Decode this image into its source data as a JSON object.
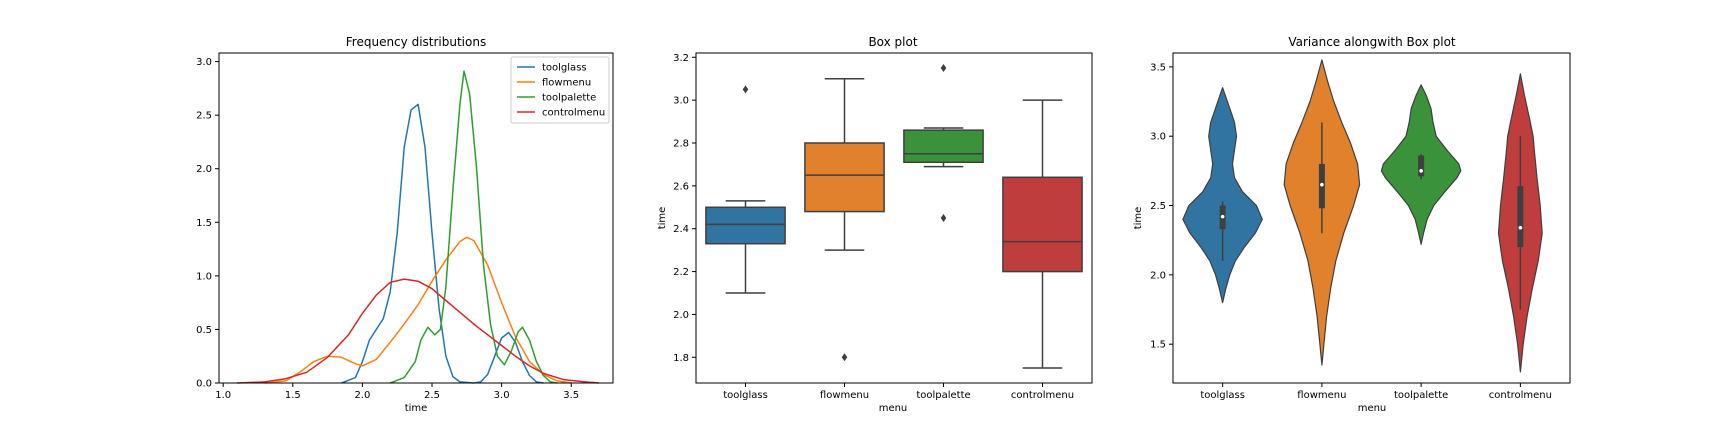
{
  "figure": {
    "background": "#ffffff"
  },
  "chart_data": [
    {
      "type": "line",
      "subtype": "kde",
      "title": "Frequency distributions",
      "xlabel": "time",
      "ylabel": "",
      "xlim": [
        0.97,
        3.8
      ],
      "ylim": [
        0,
        3.08
      ],
      "xticks": [
        1.0,
        1.5,
        2.0,
        2.5,
        3.0,
        3.5
      ],
      "yticks": [
        0.0,
        0.5,
        1.0,
        1.5,
        2.0,
        2.5,
        3.0
      ],
      "grid": false,
      "legend_position": "top-right",
      "series": [
        {
          "name": "toolglass",
          "color": "#1f77b4",
          "points": [
            [
              1.85,
              0.0
            ],
            [
              1.95,
              0.05
            ],
            [
              2.0,
              0.2
            ],
            [
              2.05,
              0.4
            ],
            [
              2.1,
              0.5
            ],
            [
              2.15,
              0.6
            ],
            [
              2.2,
              0.85
            ],
            [
              2.25,
              1.4
            ],
            [
              2.3,
              2.2
            ],
            [
              2.35,
              2.55
            ],
            [
              2.4,
              2.6
            ],
            [
              2.45,
              2.2
            ],
            [
              2.5,
              1.4
            ],
            [
              2.55,
              0.7
            ],
            [
              2.6,
              0.25
            ],
            [
              2.65,
              0.06
            ],
            [
              2.7,
              0.01
            ],
            [
              2.8,
              0.0
            ],
            [
              2.85,
              0.01
            ],
            [
              2.9,
              0.08
            ],
            [
              2.95,
              0.25
            ],
            [
              3.0,
              0.42
            ],
            [
              3.05,
              0.47
            ],
            [
              3.1,
              0.38
            ],
            [
              3.15,
              0.2
            ],
            [
              3.2,
              0.07
            ],
            [
              3.25,
              0.01
            ],
            [
              3.3,
              0.0
            ]
          ]
        },
        {
          "name": "flowmenu",
          "color": "#ff7f0e",
          "points": [
            [
              1.3,
              0.0
            ],
            [
              1.45,
              0.02
            ],
            [
              1.55,
              0.1
            ],
            [
              1.65,
              0.2
            ],
            [
              1.75,
              0.25
            ],
            [
              1.85,
              0.24
            ],
            [
              1.95,
              0.18
            ],
            [
              2.0,
              0.16
            ],
            [
              2.1,
              0.22
            ],
            [
              2.2,
              0.38
            ],
            [
              2.3,
              0.55
            ],
            [
              2.4,
              0.73
            ],
            [
              2.5,
              0.95
            ],
            [
              2.6,
              1.15
            ],
            [
              2.7,
              1.32
            ],
            [
              2.75,
              1.36
            ],
            [
              2.8,
              1.33
            ],
            [
              2.9,
              1.1
            ],
            [
              3.0,
              0.75
            ],
            [
              3.1,
              0.43
            ],
            [
              3.2,
              0.2
            ],
            [
              3.3,
              0.08
            ],
            [
              3.4,
              0.02
            ],
            [
              3.5,
              0.0
            ]
          ]
        },
        {
          "name": "toolpalette",
          "color": "#2ca02c",
          "points": [
            [
              2.2,
              0.0
            ],
            [
              2.3,
              0.05
            ],
            [
              2.38,
              0.2
            ],
            [
              2.42,
              0.4
            ],
            [
              2.47,
              0.52
            ],
            [
              2.52,
              0.45
            ],
            [
              2.56,
              0.5
            ],
            [
              2.6,
              0.9
            ],
            [
              2.65,
              1.8
            ],
            [
              2.7,
              2.6
            ],
            [
              2.73,
              2.91
            ],
            [
              2.77,
              2.7
            ],
            [
              2.82,
              2.0
            ],
            [
              2.87,
              1.1
            ],
            [
              2.92,
              0.55
            ],
            [
              2.97,
              0.25
            ],
            [
              3.02,
              0.17
            ],
            [
              3.07,
              0.3
            ],
            [
              3.12,
              0.48
            ],
            [
              3.15,
              0.52
            ],
            [
              3.2,
              0.4
            ],
            [
              3.25,
              0.2
            ],
            [
              3.3,
              0.07
            ],
            [
              3.35,
              0.01
            ],
            [
              3.4,
              0.0
            ]
          ]
        },
        {
          "name": "controlmenu",
          "color": "#d62728",
          "points": [
            [
              1.1,
              0.0
            ],
            [
              1.3,
              0.01
            ],
            [
              1.45,
              0.04
            ],
            [
              1.6,
              0.1
            ],
            [
              1.75,
              0.24
            ],
            [
              1.9,
              0.45
            ],
            [
              2.0,
              0.65
            ],
            [
              2.1,
              0.82
            ],
            [
              2.2,
              0.94
            ],
            [
              2.3,
              0.97
            ],
            [
              2.4,
              0.95
            ],
            [
              2.5,
              0.88
            ],
            [
              2.6,
              0.77
            ],
            [
              2.7,
              0.66
            ],
            [
              2.8,
              0.55
            ],
            [
              2.9,
              0.45
            ],
            [
              3.0,
              0.35
            ],
            [
              3.1,
              0.25
            ],
            [
              3.2,
              0.16
            ],
            [
              3.3,
              0.09
            ],
            [
              3.45,
              0.03
            ],
            [
              3.6,
              0.01
            ],
            [
              3.7,
              0.0
            ]
          ]
        }
      ]
    },
    {
      "type": "box",
      "title": "Box plot",
      "xlabel": "menu",
      "ylabel": "time",
      "ylim": [
        1.68,
        3.22
      ],
      "yticks": [
        1.8,
        2.0,
        2.2,
        2.4,
        2.6,
        2.8,
        3.0,
        3.2
      ],
      "categories": [
        "toolglass",
        "flowmenu",
        "toolpalette",
        "controlmenu"
      ],
      "colors": [
        "#3274a1",
        "#e1812c",
        "#3a923a",
        "#c03d3e"
      ],
      "boxes": [
        {
          "whisker_low": 2.1,
          "q1": 2.33,
          "median": 2.42,
          "q3": 2.5,
          "whisker_high": 2.53,
          "outliers": [
            3.05
          ]
        },
        {
          "whisker_low": 2.3,
          "q1": 2.48,
          "median": 2.65,
          "q3": 2.8,
          "whisker_high": 3.1,
          "outliers": [
            1.8
          ]
        },
        {
          "whisker_low": 2.69,
          "q1": 2.71,
          "median": 2.75,
          "q3": 2.86,
          "whisker_high": 2.87,
          "outliers": [
            3.15,
            2.45
          ]
        },
        {
          "whisker_low": 1.75,
          "q1": 2.2,
          "median": 2.34,
          "q3": 2.64,
          "whisker_high": 3.0,
          "outliers": []
        }
      ]
    },
    {
      "type": "violin",
      "title": "Variance alongwith Box plot",
      "xlabel": "menu",
      "ylabel": "time",
      "ylim": [
        1.22,
        3.6
      ],
      "yticks": [
        1.5,
        2.0,
        2.5,
        3.0,
        3.5
      ],
      "categories": [
        "toolglass",
        "flowmenu",
        "toolpalette",
        "controlmenu"
      ],
      "colors": [
        "#3274a1",
        "#e1812c",
        "#3a923a",
        "#c03d3e"
      ],
      "violins": [
        {
          "range": [
            1.8,
            3.35
          ],
          "median": 2.42,
          "q1": 2.33,
          "q3": 2.5,
          "whisker_low": 2.1,
          "whisker_high": 2.53,
          "profile": [
            [
              1.8,
              0.0
            ],
            [
              1.9,
              0.08
            ],
            [
              2.0,
              0.18
            ],
            [
              2.1,
              0.32
            ],
            [
              2.2,
              0.55
            ],
            [
              2.3,
              0.82
            ],
            [
              2.4,
              1.0
            ],
            [
              2.5,
              0.85
            ],
            [
              2.6,
              0.5
            ],
            [
              2.7,
              0.3
            ],
            [
              2.8,
              0.25
            ],
            [
              2.9,
              0.3
            ],
            [
              3.0,
              0.35
            ],
            [
              3.1,
              0.3
            ],
            [
              3.2,
              0.18
            ],
            [
              3.3,
              0.06
            ],
            [
              3.35,
              0.0
            ]
          ]
        },
        {
          "range": [
            1.35,
            3.55
          ],
          "median": 2.65,
          "q1": 2.48,
          "q3": 2.8,
          "whisker_low": 2.3,
          "whisker_high": 3.1,
          "profile": [
            [
              1.35,
              0.0
            ],
            [
              1.5,
              0.05
            ],
            [
              1.7,
              0.12
            ],
            [
              1.9,
              0.22
            ],
            [
              2.1,
              0.35
            ],
            [
              2.3,
              0.55
            ],
            [
              2.5,
              0.8
            ],
            [
              2.65,
              0.95
            ],
            [
              2.8,
              0.9
            ],
            [
              2.95,
              0.72
            ],
            [
              3.1,
              0.5
            ],
            [
              3.25,
              0.3
            ],
            [
              3.4,
              0.14
            ],
            [
              3.55,
              0.0
            ]
          ]
        },
        {
          "range": [
            2.22,
            3.37
          ],
          "median": 2.75,
          "q1": 2.71,
          "q3": 2.86,
          "whisker_low": 2.69,
          "whisker_high": 2.87,
          "profile": [
            [
              2.22,
              0.0
            ],
            [
              2.3,
              0.06
            ],
            [
              2.4,
              0.15
            ],
            [
              2.5,
              0.32
            ],
            [
              2.6,
              0.6
            ],
            [
              2.7,
              0.9
            ],
            [
              2.75,
              1.0
            ],
            [
              2.8,
              0.95
            ],
            [
              2.9,
              0.65
            ],
            [
              3.0,
              0.38
            ],
            [
              3.1,
              0.3
            ],
            [
              3.2,
              0.25
            ],
            [
              3.3,
              0.12
            ],
            [
              3.37,
              0.0
            ]
          ]
        },
        {
          "range": [
            1.3,
            3.45
          ],
          "median": 2.34,
          "q1": 2.2,
          "q3": 2.64,
          "whisker_low": 1.75,
          "whisker_high": 3.0,
          "profile": [
            [
              1.3,
              0.0
            ],
            [
              1.5,
              0.07
            ],
            [
              1.7,
              0.17
            ],
            [
              1.9,
              0.3
            ],
            [
              2.1,
              0.45
            ],
            [
              2.3,
              0.55
            ],
            [
              2.5,
              0.5
            ],
            [
              2.7,
              0.42
            ],
            [
              2.9,
              0.35
            ],
            [
              3.0,
              0.32
            ],
            [
              3.1,
              0.25
            ],
            [
              3.3,
              0.1
            ],
            [
              3.45,
              0.0
            ]
          ]
        }
      ]
    }
  ]
}
